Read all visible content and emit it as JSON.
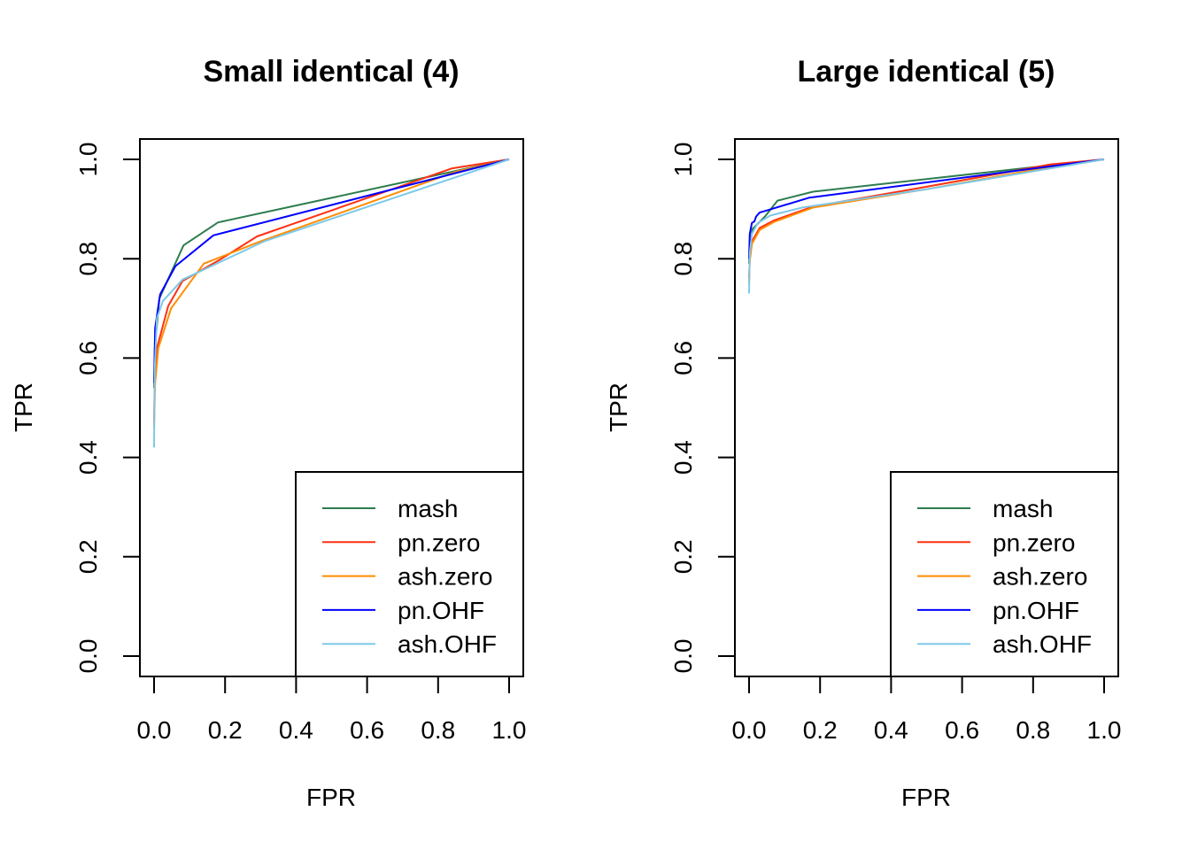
{
  "chart_data": [
    {
      "type": "line",
      "title": "Small identical (4)",
      "xlabel": "FPR",
      "ylabel": "TPR",
      "xlim": [
        0,
        1
      ],
      "ylim": [
        0,
        1
      ],
      "xticks": [
        "0.0",
        "0.2",
        "0.4",
        "0.6",
        "0.8",
        "1.0"
      ],
      "yticks": [
        "0.0",
        "0.2",
        "0.4",
        "0.6",
        "0.8",
        "1.0"
      ],
      "grid": false,
      "legend_position": "bottom-right",
      "series": [
        {
          "name": "mash",
          "color": "#2e7d4f",
          "x": [
            0,
            0.002,
            0.015,
            0.083,
            0.18,
            1.0
          ],
          "y": [
            0.54,
            0.62,
            0.72,
            0.827,
            0.873,
            1.0
          ]
        },
        {
          "name": "pn.zero",
          "color": "#ff3010",
          "x": [
            0,
            0.002,
            0.008,
            0.04,
            0.08,
            0.19,
            0.29,
            0.84,
            1.0
          ],
          "y": [
            0.47,
            0.56,
            0.62,
            0.705,
            0.755,
            0.8,
            0.845,
            0.982,
            1.0
          ]
        },
        {
          "name": "ash.zero",
          "color": "#ff8c00",
          "x": [
            0,
            0.003,
            0.012,
            0.048,
            0.14,
            0.3,
            0.85,
            1.0
          ],
          "y": [
            0.46,
            0.55,
            0.62,
            0.7,
            0.79,
            0.835,
            0.975,
            1.0
          ]
        },
        {
          "name": "pn.OHF",
          "color": "#0000ff",
          "x": [
            0,
            0.003,
            0.017,
            0.06,
            0.167,
            1.0
          ],
          "y": [
            0.55,
            0.66,
            0.728,
            0.785,
            0.847,
            1.0
          ]
        },
        {
          "name": "ash.OHF",
          "color": "#7ec8e8",
          "x": [
            0,
            0.002,
            0.008,
            0.025,
            0.08,
            0.31,
            1.0
          ],
          "y": [
            0.42,
            0.58,
            0.68,
            0.715,
            0.758,
            0.835,
            1.0
          ]
        }
      ]
    },
    {
      "type": "line",
      "title": "Large identical (5)",
      "xlabel": "FPR",
      "ylabel": "TPR",
      "xlim": [
        0,
        1
      ],
      "ylim": [
        0,
        1
      ],
      "xticks": [
        "0.0",
        "0.2",
        "0.4",
        "0.6",
        "0.8",
        "1.0"
      ],
      "yticks": [
        "0.0",
        "0.2",
        "0.4",
        "0.6",
        "0.8",
        "1.0"
      ],
      "grid": false,
      "legend_position": "bottom-right",
      "series": [
        {
          "name": "mash",
          "color": "#2e7d4f",
          "x": [
            0,
            0.002,
            0.01,
            0.045,
            0.08,
            0.18,
            1.0
          ],
          "y": [
            0.79,
            0.83,
            0.86,
            0.885,
            0.917,
            0.935,
            1.0
          ]
        },
        {
          "name": "pn.zero",
          "color": "#ff3010",
          "x": [
            0,
            0.002,
            0.008,
            0.03,
            0.07,
            0.18,
            0.5,
            0.85,
            1.0
          ],
          "y": [
            0.76,
            0.8,
            0.835,
            0.862,
            0.877,
            0.905,
            0.945,
            0.99,
            1.0
          ]
        },
        {
          "name": "ash.zero",
          "color": "#ff8c00",
          "x": [
            0,
            0.002,
            0.008,
            0.03,
            0.07,
            0.18,
            0.5,
            0.85,
            1.0
          ],
          "y": [
            0.75,
            0.795,
            0.83,
            0.858,
            0.874,
            0.903,
            0.94,
            0.985,
            1.0
          ]
        },
        {
          "name": "pn.OHF",
          "color": "#0000ff",
          "x": [
            0,
            0.002,
            0.008,
            0.015,
            0.02,
            0.03,
            0.045,
            0.17,
            1.0
          ],
          "y": [
            0.8,
            0.85,
            0.872,
            0.875,
            0.885,
            0.893,
            0.896,
            0.923,
            1.0
          ]
        },
        {
          "name": "ash.OHF",
          "color": "#7ec8e8",
          "x": [
            0,
            0.002,
            0.008,
            0.025,
            0.06,
            0.15,
            0.5,
            1.0
          ],
          "y": [
            0.73,
            0.81,
            0.85,
            0.872,
            0.887,
            0.903,
            0.94,
            1.0
          ]
        }
      ]
    }
  ]
}
